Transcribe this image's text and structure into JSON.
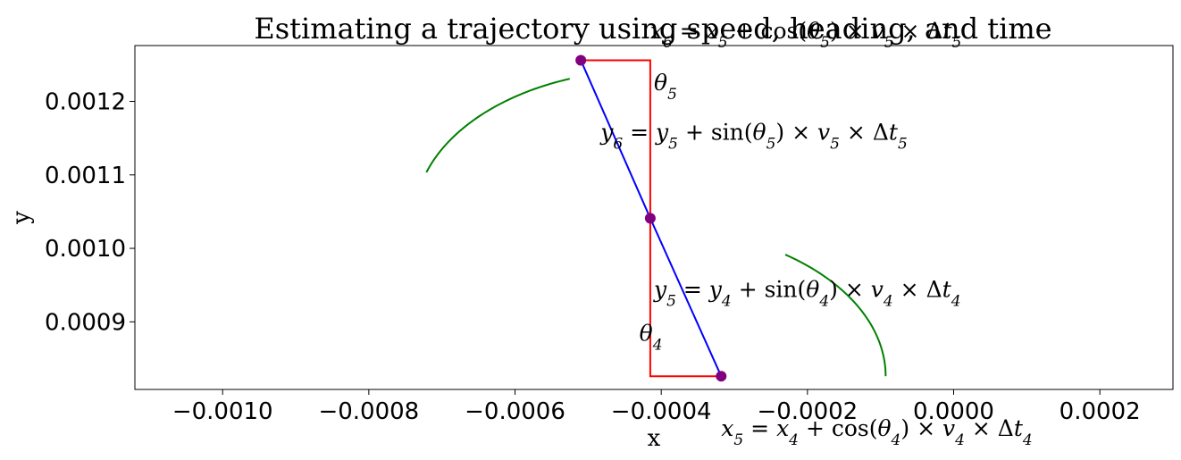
{
  "chart_data": {
    "type": "line",
    "title": "Estimating a trajectory using speed, heading, and time",
    "xlabel": "x",
    "ylabel": "y",
    "xlim": [
      -0.00112,
      0.0003
    ],
    "ylim": [
      0.000808,
      0.001276
    ],
    "grid": false,
    "x_ticks": [
      -0.001,
      -0.0008,
      -0.0006,
      -0.0004,
      -0.0002,
      0.0,
      0.0002
    ],
    "x_tick_labels": [
      "−0.0010",
      "−0.0008",
      "−0.0006",
      "−0.0004",
      "−0.0002",
      "0.0000",
      "0.0002"
    ],
    "y_ticks": [
      0.0009,
      0.001,
      0.0011,
      0.0012
    ],
    "y_tick_labels": [
      "0.0009",
      "0.0010",
      "0.0011",
      "0.0012"
    ],
    "series": [
      {
        "kind": "trajectory",
        "color": "#0000ff",
        "marker_color": "#800080",
        "x": [
          -0.000318,
          -0.000415,
          -0.00051
        ],
        "y": [
          0.000826,
          0.001041,
          0.001256
        ]
      },
      {
        "kind": "component-lines",
        "color": "#ff0000",
        "segments": [
          {
            "x": [
              -0.000318,
              -0.000415,
              -0.000415
            ],
            "y": [
              0.000826,
              0.000826,
              0.001041
            ]
          },
          {
            "x": [
              -0.000415,
              -0.000415,
              -0.00051
            ],
            "y": [
              0.001041,
              0.001256,
              0.001256
            ]
          }
        ]
      },
      {
        "kind": "heading-arc",
        "color": "#008000",
        "center": [
          -0.000415,
          0.000826
        ],
        "radius_x": 0.000322,
        "radius_y": 0.000202,
        "angle_start_deg": 0,
        "angle_end_deg": 55
      },
      {
        "kind": "heading-arc",
        "color": "#008000",
        "center": [
          -0.000415,
          0.001041
        ],
        "radius_x": 0.000322,
        "radius_y": 0.000202,
        "angle_start_deg": 110,
        "angle_end_deg": 162
      }
    ],
    "annotations": [
      {
        "id": "x6",
        "html": "x<tspan baseline-shift='sub' font-size='17'>6</tspan><tspan font-style='normal'> = </tspan>x<tspan baseline-shift='sub' font-size='17'>5</tspan><tspan font-style='normal'> + cos(</tspan>θ<tspan baseline-shift='sub' font-size='17'>5</tspan><tspan font-style='normal'>) × </tspan>v<tspan baseline-shift='sub' font-size='17'>5</tspan><tspan font-style='normal'> × Δ</tspan>t<tspan baseline-shift='sub' font-size='17'>5</tspan>",
        "x": -0.000415,
        "y": 0.001276,
        "anchor": "start",
        "dy": -8
      },
      {
        "id": "theta5",
        "html": "θ<tspan baseline-shift='sub' font-size='17'>5</tspan>",
        "x": -0.00041,
        "y": 0.001215,
        "anchor": "start",
        "dy": 0
      },
      {
        "id": "y6",
        "html": "y<tspan baseline-shift='sub' font-size='17'>6</tspan><tspan font-style='normal'> = </tspan>y<tspan baseline-shift='sub' font-size='17'>5</tspan><tspan font-style='normal'> + sin(</tspan>θ<tspan baseline-shift='sub' font-size='17'>5</tspan><tspan font-style='normal'>) × </tspan>v<tspan baseline-shift='sub' font-size='17'>5</tspan><tspan font-style='normal'> × Δ</tspan>t<tspan baseline-shift='sub' font-size='17'>5</tspan>",
        "x": -0.000483,
        "y": 0.001148,
        "anchor": "start",
        "dy": 0
      },
      {
        "id": "y5",
        "html": "y<tspan baseline-shift='sub' font-size='17'>5</tspan><tspan font-style='normal'> = </tspan>y<tspan baseline-shift='sub' font-size='17'>4</tspan><tspan font-style='normal'> + sin(</tspan>θ<tspan baseline-shift='sub' font-size='17'>4</tspan><tspan font-style='normal'>) × </tspan>v<tspan baseline-shift='sub' font-size='17'>4</tspan><tspan font-style='normal'> × Δ</tspan>t<tspan baseline-shift='sub' font-size='17'>4</tspan>",
        "x": -0.00041,
        "y": 0.000934,
        "anchor": "start",
        "dy": 0
      },
      {
        "id": "theta4",
        "html": "θ<tspan baseline-shift='sub' font-size='17'>4</tspan>",
        "x": -0.00043,
        "y": 0.000874,
        "anchor": "start",
        "dy": 0
      },
      {
        "id": "x5",
        "html": "x<tspan baseline-shift='sub' font-size='17'>5</tspan><tspan font-style='normal'> = </tspan>x<tspan baseline-shift='sub' font-size='17'>4</tspan><tspan font-style='normal'> + cos(</tspan>θ<tspan baseline-shift='sub' font-size='17'>4</tspan><tspan font-style='normal'>) × </tspan>v<tspan baseline-shift='sub' font-size='17'>4</tspan><tspan font-style='normal'> × Δ</tspan>t<tspan baseline-shift='sub' font-size='17'>4</tspan>",
        "x": -0.000318,
        "y": 0.000808,
        "anchor": "start",
        "dy": 52
      }
    ]
  }
}
